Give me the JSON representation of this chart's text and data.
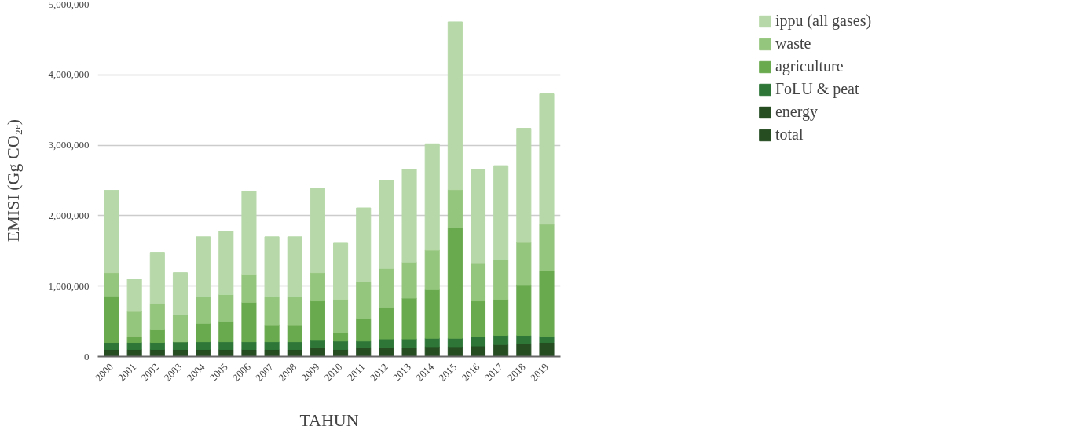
{
  "chart_data": {
    "type": "bar",
    "stacked": true,
    "xlabel": "TAHUN",
    "ylabel": "EMISI (Gg CO₂ₑ)",
    "categories": [
      "2000",
      "2001",
      "2002",
      "2003",
      "2004",
      "2005",
      "2006",
      "2007",
      "2008",
      "2009",
      "2010",
      "2011",
      "2012",
      "2013",
      "2014",
      "2015",
      "2016",
      "2017",
      "2018",
      "2019"
    ],
    "ylim": [
      0,
      5000000
    ],
    "yticks": [
      {
        "value": 0,
        "label": "0"
      },
      {
        "value": 1000000,
        "label": "1,000,000"
      },
      {
        "value": 2000000,
        "label": "2,000,000"
      },
      {
        "value": 3000000,
        "label": "3,000,000"
      },
      {
        "value": 4000000,
        "label": "4,000,000"
      },
      {
        "value": 5000000,
        "label": "5,000,000"
      }
    ],
    "grid": "y",
    "legend": "right",
    "series": [
      {
        "name": "total",
        "color": "#264d22",
        "values": [
          null,
          null,
          null,
          null,
          null,
          null,
          null,
          null,
          null,
          null,
          null,
          null,
          null,
          null,
          null,
          null,
          null,
          null,
          null,
          null
        ]
      },
      {
        "name": "energy",
        "color": "#264d22",
        "values": [
          100000,
          100000,
          100000,
          100000,
          100000,
          100000,
          100000,
          100000,
          100000,
          130000,
          100000,
          130000,
          130000,
          130000,
          140000,
          140000,
          150000,
          170000,
          180000,
          200000
        ]
      },
      {
        "name": "FoLU & peat",
        "color": "#2e7638",
        "values": [
          100000,
          100000,
          100000,
          110000,
          110000,
          110000,
          110000,
          110000,
          110000,
          100000,
          120000,
          90000,
          120000,
          120000,
          120000,
          120000,
          130000,
          130000,
          120000,
          90000
        ]
      },
      {
        "name": "agriculture",
        "color": "#6aaa4f",
        "values": [
          660000,
          80000,
          190000,
          0,
          260000,
          290000,
          560000,
          240000,
          240000,
          560000,
          120000,
          320000,
          450000,
          580000,
          700000,
          1570000,
          510000,
          510000,
          720000,
          930000
        ]
      },
      {
        "name": "waste",
        "color": "#95c67e",
        "values": [
          330000,
          360000,
          360000,
          380000,
          380000,
          380000,
          400000,
          400000,
          400000,
          400000,
          470000,
          520000,
          550000,
          510000,
          550000,
          540000,
          540000,
          560000,
          600000,
          660000
        ]
      },
      {
        "name": "ippu (all gases)",
        "color": "#b7d9a9",
        "values": [
          1170000,
          460000,
          730000,
          600000,
          850000,
          900000,
          1180000,
          850000,
          850000,
          1200000,
          800000,
          1050000,
          1250000,
          1320000,
          1510000,
          2380000,
          1330000,
          1340000,
          1620000,
          1850000
        ]
      }
    ]
  }
}
